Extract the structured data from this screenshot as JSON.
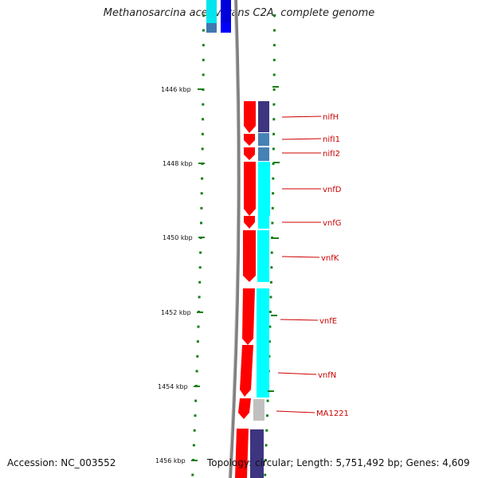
{
  "title": "Methanosarcina acetivorans C2A, complete genome",
  "accession_label": "Accession: NC_003552",
  "topology_label": "Topology: circular; Length: 5,751,492 bp; Genes: 4,609",
  "colors": {
    "background": "#ffffff",
    "forward_strand": "#ff0000",
    "cog_cyan": "#00ffff",
    "cog_indigo": "#3d3580",
    "cog_steel": "#4682b4",
    "cog_grey": "#c0c0c0",
    "ticks": "#1a7f1a",
    "backbone": "#808080",
    "label_text": "#cc0000"
  },
  "kbp_ticks": [
    "1446 kbp",
    "1448 kbp",
    "1450 kbp",
    "1452 kbp",
    "1454 kbp",
    "1456 kbp"
  ],
  "genes": [
    {
      "name": "nifH",
      "cog_color": "#3d3580"
    },
    {
      "name": "nifI1",
      "cog_color": "#4682b4"
    },
    {
      "name": "nifI2",
      "cog_color": "#4682b4"
    },
    {
      "name": "vnfD",
      "cog_color": "#00ffff"
    },
    {
      "name": "vnfG",
      "cog_color": "#00ffff"
    },
    {
      "name": "vnfK",
      "cog_color": "#00ffff"
    },
    {
      "name": "vnfE",
      "cog_color": "#00ffff"
    },
    {
      "name": "vnfN",
      "cog_color": "#00ffff"
    },
    {
      "name": "MA1221",
      "cog_color": "#c0c0c0"
    }
  ]
}
